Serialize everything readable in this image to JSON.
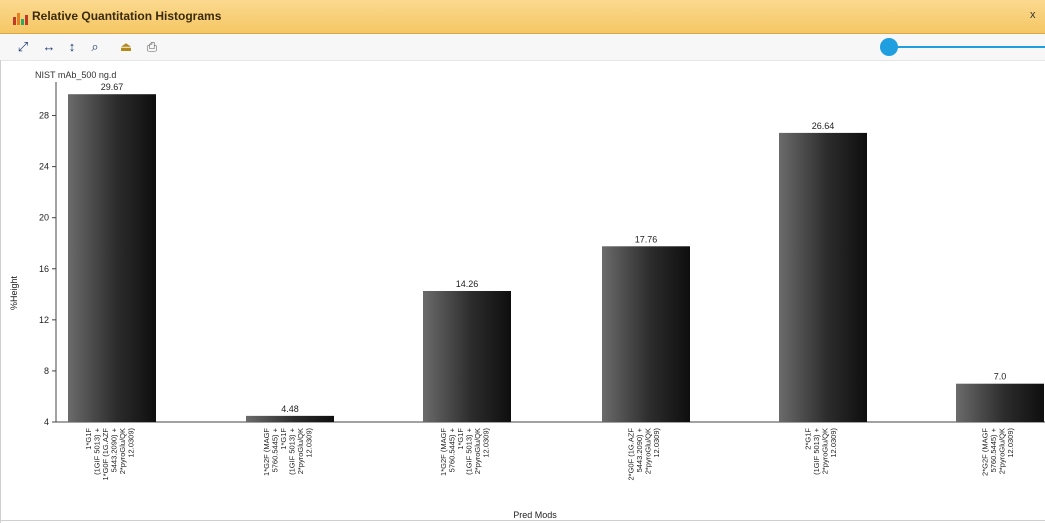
{
  "window": {
    "title": "Relative Quantitation Histograms",
    "close_label": "x"
  },
  "toolbar": {
    "tools": [
      {
        "name": "expand-icon",
        "glyph": "⤢"
      },
      {
        "name": "fit-horizontal-icon",
        "glyph": "↔"
      },
      {
        "name": "fit-vertical-icon",
        "glyph": "↕"
      },
      {
        "name": "zoom-icon",
        "glyph": "🔍"
      },
      {
        "name": "export-icon",
        "glyph": "⏏"
      },
      {
        "name": "print-icon",
        "glyph": "🖶"
      }
    ]
  },
  "colors": {
    "accent": "#1f9fe0",
    "titlebar": "#f5c764"
  },
  "chart_data": {
    "type": "bar",
    "title": "NIST mAb_500 ng.d",
    "xlabel": "Pred Mods",
    "ylabel": "%Height",
    "ylim": [
      4,
      30
    ],
    "yticks": [
      4,
      8,
      12,
      16,
      20,
      24,
      28
    ],
    "categories": [
      [
        "1*G1F",
        "(1GIF 5013) +",
        "1*G0F (1G.AZF",
        "5443.2090) +",
        "2*pyroGlu/QK",
        "12.0309)"
      ],
      [
        "1*G2F (MAGF",
        "5760.5445) +",
        "1*G1F",
        "(1GIF 5013) +",
        "2*pyroGlu/QK",
        "12.0309)"
      ],
      [
        "1*G2F (MAGF",
        "5760.5445) +",
        "1*G1F",
        "(1GIF 5013) +",
        "2*pyroGlu/QK",
        "12.0309)"
      ],
      [
        "2*G0F (1G.AZF",
        "5443.2090) +",
        "2*pyroGlu/QK",
        "12.0309)"
      ],
      [
        "2*G1F",
        "(1GIF 5013) +",
        "2*pyroGlu/QK",
        "12.0309)"
      ],
      [
        "2*G2F (MAGF",
        "5760.5445) +",
        "2*pyroGlu/QK",
        "12.0309)"
      ]
    ],
    "values": [
      29.67,
      4.48,
      14.26,
      17.76,
      26.64,
      7.0
    ],
    "value_labels": [
      "29.67",
      "4.48",
      "14.26",
      "17.76",
      "26.64",
      "7.0"
    ],
    "grid": false,
    "legend": "none"
  }
}
